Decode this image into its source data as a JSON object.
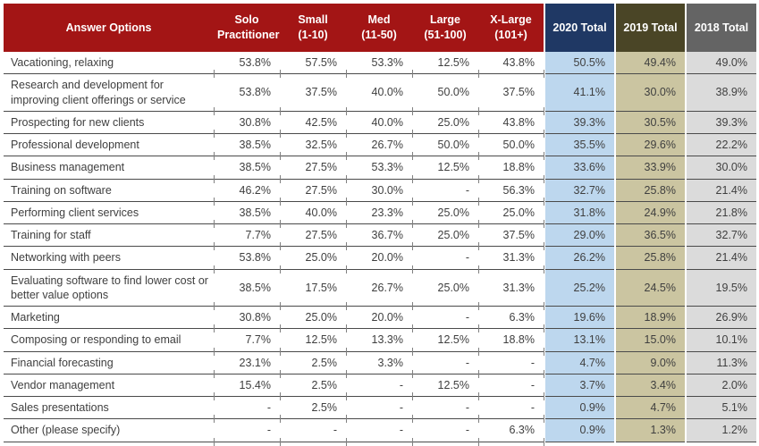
{
  "table": {
    "columns": [
      {
        "id": "answer_options",
        "label": "Answer Options"
      },
      {
        "id": "solo_practitioner",
        "label": "Solo\nPractitioner"
      },
      {
        "id": "small",
        "label": "Small\n(1-10)"
      },
      {
        "id": "med",
        "label": "Med\n(11-50)"
      },
      {
        "id": "large",
        "label": "Large\n(51-100)"
      },
      {
        "id": "x_large",
        "label": "X-Large\n(101+)"
      },
      {
        "id": "total_2020",
        "label": "2020 Total"
      },
      {
        "id": "total_2019",
        "label": "2019 Total"
      },
      {
        "id": "total_2018",
        "label": "2018 Total"
      }
    ],
    "rows": [
      {
        "label": "Vacationing, relaxing",
        "values": [
          "53.8%",
          "57.5%",
          "53.3%",
          "12.5%",
          "43.8%",
          "50.5%",
          "49.4%",
          "49.0%"
        ]
      },
      {
        "label": "Research and development for improving client offerings or service",
        "values": [
          "53.8%",
          "37.5%",
          "40.0%",
          "50.0%",
          "37.5%",
          "41.1%",
          "30.0%",
          "38.9%"
        ]
      },
      {
        "label": "Prospecting for new clients",
        "values": [
          "30.8%",
          "42.5%",
          "40.0%",
          "25.0%",
          "43.8%",
          "39.3%",
          "30.5%",
          "39.3%"
        ]
      },
      {
        "label": "Professional development",
        "values": [
          "38.5%",
          "32.5%",
          "26.7%",
          "50.0%",
          "50.0%",
          "35.5%",
          "29.6%",
          "22.2%"
        ]
      },
      {
        "label": "Business management",
        "values": [
          "38.5%",
          "27.5%",
          "53.3%",
          "12.5%",
          "18.8%",
          "33.6%",
          "33.9%",
          "30.0%"
        ]
      },
      {
        "label": "Training on software",
        "values": [
          "46.2%",
          "27.5%",
          "30.0%",
          "-",
          "56.3%",
          "32.7%",
          "25.8%",
          "21.4%"
        ]
      },
      {
        "label": "Performing client services",
        "values": [
          "38.5%",
          "40.0%",
          "23.3%",
          "25.0%",
          "25.0%",
          "31.8%",
          "24.9%",
          "21.8%"
        ]
      },
      {
        "label": "Training for staff",
        "values": [
          "7.7%",
          "27.5%",
          "36.7%",
          "25.0%",
          "37.5%",
          "29.0%",
          "36.5%",
          "32.7%"
        ]
      },
      {
        "label": "Networking with peers",
        "values": [
          "53.8%",
          "25.0%",
          "20.0%",
          "-",
          "31.3%",
          "26.2%",
          "25.8%",
          "21.4%"
        ]
      },
      {
        "label": "Evaluating software to find lower cost or better value options",
        "values": [
          "38.5%",
          "17.5%",
          "26.7%",
          "25.0%",
          "31.3%",
          "25.2%",
          "24.5%",
          "19.5%"
        ]
      },
      {
        "label": "Marketing",
        "values": [
          "30.8%",
          "25.0%",
          "20.0%",
          "-",
          "6.3%",
          "19.6%",
          "18.9%",
          "26.9%"
        ]
      },
      {
        "label": "Composing or responding to email",
        "values": [
          "7.7%",
          "12.5%",
          "13.3%",
          "12.5%",
          "18.8%",
          "13.1%",
          "15.0%",
          "10.1%"
        ]
      },
      {
        "label": "Financial forecasting",
        "values": [
          "23.1%",
          "2.5%",
          "3.3%",
          "-",
          "-",
          "4.7%",
          "9.0%",
          "11.3%"
        ]
      },
      {
        "label": "Vendor management",
        "values": [
          "15.4%",
          "2.5%",
          "-",
          "12.5%",
          "-",
          "3.7%",
          "3.4%",
          "2.0%"
        ]
      },
      {
        "label": "Sales presentations",
        "values": [
          "-",
          "2.5%",
          "-",
          "-",
          "-",
          "0.9%",
          "4.7%",
          "5.1%"
        ]
      },
      {
        "label": "Other (please specify)",
        "values": [
          "-",
          "-",
          "-",
          "-",
          "6.3%",
          "0.9%",
          "1.3%",
          "1.2%"
        ]
      }
    ]
  },
  "colors": {
    "header_red": "#a31515",
    "header_2020_blue": "#1f3864",
    "header_2019_olive": "#4a4526",
    "header_2018_gray": "#646464",
    "column_2020_light_blue": "#bdd7ee",
    "column_2019_tan": "#cbc5a1",
    "column_2018_light_gray": "#dbdbdb",
    "header_text": "#ffffff",
    "body_text": "#3f3f3f",
    "row_border": "#4a4a4a"
  }
}
